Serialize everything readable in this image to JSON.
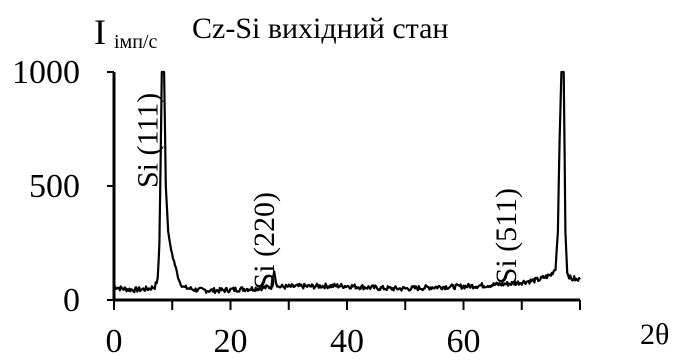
{
  "chart_data": {
    "type": "line",
    "title": "Cz-Si вихідний стан",
    "ylabel": "I",
    "ylabel_unit": "імп/с",
    "xlabel": "2θ",
    "xlim": [
      0,
      80
    ],
    "ylim": [
      0,
      1000
    ],
    "x_ticks": [
      0,
      20,
      40,
      60
    ],
    "y_ticks": [
      0,
      500,
      1000
    ],
    "grid": false,
    "color": "#000000",
    "annotations": [
      {
        "text": "Si (111)",
        "x": 7.5,
        "y": 700
      },
      {
        "text": "Si (220)",
        "x": 27.5,
        "y": 260
      },
      {
        "text": "Si (511)",
        "x": 69,
        "y": 280
      }
    ],
    "series": [
      {
        "values": [
          [
            0,
            60
          ],
          [
            1,
            52
          ],
          [
            2,
            48
          ],
          [
            3,
            45
          ],
          [
            4,
            45
          ],
          [
            5,
            47
          ],
          [
            6,
            50
          ],
          [
            7,
            58
          ],
          [
            7.5,
            90
          ],
          [
            7.8,
            250
          ],
          [
            8,
            600
          ],
          [
            8.2,
            1000
          ],
          [
            8.6,
            1000
          ],
          [
            8.9,
            500
          ],
          [
            9.3,
            300
          ],
          [
            9.8,
            220
          ],
          [
            10.3,
            170
          ],
          [
            10.8,
            120
          ],
          [
            11.3,
            80
          ],
          [
            12,
            55
          ],
          [
            14,
            45
          ],
          [
            16,
            42
          ],
          [
            18,
            42
          ],
          [
            20,
            45
          ],
          [
            22,
            48
          ],
          [
            24,
            50
          ],
          [
            26,
            55
          ],
          [
            27,
            58
          ],
          [
            27.2,
            90
          ],
          [
            27.5,
            135
          ],
          [
            27.8,
            80
          ],
          [
            28.2,
            58
          ],
          [
            30,
            58
          ],
          [
            32,
            60
          ],
          [
            34,
            60
          ],
          [
            36,
            62
          ],
          [
            38,
            62
          ],
          [
            40,
            62
          ],
          [
            42,
            58
          ],
          [
            44,
            55
          ],
          [
            46,
            52
          ],
          [
            48,
            50
          ],
          [
            50,
            50
          ],
          [
            52,
            52
          ],
          [
            54,
            55
          ],
          [
            56,
            58
          ],
          [
            58,
            58
          ],
          [
            60,
            60
          ],
          [
            62,
            62
          ],
          [
            64,
            65
          ],
          [
            66,
            68
          ],
          [
            68,
            72
          ],
          [
            70,
            78
          ],
          [
            72,
            85
          ],
          [
            73,
            90
          ],
          [
            74,
            100
          ],
          [
            75,
            110
          ],
          [
            75.8,
            140
          ],
          [
            76.2,
            300
          ],
          [
            76.5,
            700
          ],
          [
            76.8,
            1000
          ],
          [
            77.2,
            1000
          ],
          [
            77.5,
            300
          ],
          [
            77.8,
            120
          ],
          [
            78.5,
            90
          ],
          [
            79,
            95
          ],
          [
            79.5,
            85
          ],
          [
            80,
            90
          ]
        ]
      }
    ]
  }
}
